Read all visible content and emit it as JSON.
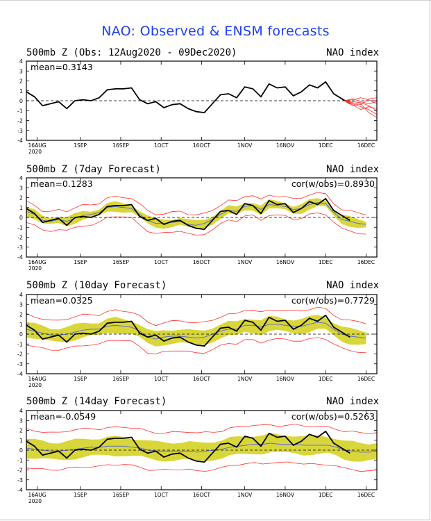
{
  "page": {
    "title": "NAO: Observed & ENSM forecasts"
  },
  "colors": {
    "title": "#1a3ff0",
    "observed": "#000000",
    "ensemble_members": "#ff3030",
    "spread": "#d9d63a",
    "ensemble_mean": "#5a6fd0",
    "zero_line": "#000000"
  },
  "x_axis": {
    "ticks": [
      {
        "label": "16AUG",
        "sub": "2020"
      },
      {
        "label": "1SEP",
        "sub": ""
      },
      {
        "label": "16SEP",
        "sub": ""
      },
      {
        "label": "1OCT",
        "sub": ""
      },
      {
        "label": "16OCT",
        "sub": ""
      },
      {
        "label": "1NOV",
        "sub": ""
      },
      {
        "label": "16NOV",
        "sub": ""
      },
      {
        "label": "1DEC",
        "sub": ""
      },
      {
        "label": "16DEC",
        "sub": ""
      }
    ],
    "tick_days": [
      4,
      20,
      35,
      50,
      65,
      81,
      96,
      111,
      126
    ]
  },
  "y_axis": {
    "ylim": [
      -4,
      4
    ],
    "ticks": [
      "4",
      "3",
      "2",
      "1",
      "0",
      "-1",
      "-2",
      "-3",
      "-4"
    ]
  },
  "panels": [
    {
      "title": "500mb Z (Obs: 12Aug2020 - 09Dec2020)",
      "index_label": "NAO index",
      "mean_label": "mean=0.3143",
      "cor_label": ""
    },
    {
      "title": "500mb Z (7day Forecast)",
      "index_label": "NAO index",
      "mean_label": "mean=0.1283",
      "cor_label": "cor(w/obs)=0.8930"
    },
    {
      "title": "500mb Z (10day Forecast)",
      "index_label": "NAO index",
      "mean_label": "mean=0.0325",
      "cor_label": "cor(w/obs)=0.7729"
    },
    {
      "title": "500mb Z (14day Forecast)",
      "index_label": "NAO index",
      "mean_label": "mean=-0.0549",
      "cor_label": "cor(w/obs)=0.5263"
    }
  ],
  "chart_data": {
    "type": "line",
    "x_units": "days since 12Aug2020",
    "xlim": [
      0,
      130
    ],
    "ylim": [
      -4,
      4
    ],
    "observed": {
      "name": "Observed NAO",
      "x": [
        0,
        3,
        6,
        9,
        12,
        15,
        18,
        21,
        24,
        27,
        30,
        33,
        36,
        39,
        42,
        45,
        48,
        51,
        54,
        57,
        60,
        63,
        66,
        69,
        72,
        75,
        78,
        81,
        84,
        87,
        90,
        93,
        96,
        99,
        102,
        105,
        108,
        111,
        114,
        117,
        120
      ],
      "y": [
        0.9,
        0.4,
        -0.5,
        -0.3,
        -0.1,
        -0.8,
        0.0,
        0.1,
        0.0,
        0.3,
        1.1,
        1.2,
        1.2,
        1.3,
        0.1,
        -0.3,
        -0.1,
        -0.7,
        -0.4,
        -0.3,
        -0.8,
        -1.1,
        -1.2,
        -0.3,
        0.6,
        0.7,
        0.3,
        1.4,
        1.2,
        0.4,
        1.7,
        1.3,
        1.4,
        0.5,
        0.9,
        1.6,
        1.3,
        1.9,
        0.7,
        0.2,
        -0.3
      ]
    },
    "forecast_members_panel1": {
      "x": [
        118,
        121,
        124,
        127,
        130
      ],
      "members": [
        [
          0.0,
          -0.3,
          -0.6,
          -0.9,
          -1.4
        ],
        [
          0.0,
          -0.1,
          -0.2,
          -0.5,
          -1.0
        ],
        [
          0.0,
          0.1,
          0.3,
          0.1,
          -0.3
        ],
        [
          0.0,
          -0.4,
          -0.9,
          -0.6,
          -0.8
        ],
        [
          0.0,
          -0.2,
          -0.4,
          0.2,
          0.3
        ],
        [
          0.0,
          -0.5,
          -0.3,
          -1.2,
          -1.7
        ],
        [
          0.0,
          0.2,
          -0.1,
          -0.3,
          -0.1
        ]
      ]
    },
    "forecasts": [
      {
        "lead": "7day",
        "start_x": 0,
        "end_x": 126,
        "ens_mean": [
          0.6,
          0.3,
          -0.3,
          -0.4,
          -0.2,
          -0.4,
          -0.1,
          0.2,
          0.3,
          0.5,
          1.0,
          1.1,
          1.0,
          0.9,
          0.3,
          -0.3,
          -0.6,
          -0.6,
          -0.5,
          -0.4,
          -0.7,
          -0.8,
          -0.6,
          -0.2,
          0.3,
          0.7,
          0.6,
          1.1,
          1.2,
          0.8,
          1.3,
          1.2,
          1.1,
          0.8,
          0.9,
          1.3,
          1.5,
          1.4,
          0.5,
          -0.2,
          -0.4,
          -0.6,
          -0.7
        ],
        "spread": 0.4,
        "envelope": 1.0
      },
      {
        "lead": "10day",
        "start_x": 0,
        "end_x": 126,
        "ens_mean": [
          0.5,
          0.3,
          0.1,
          -0.1,
          -0.1,
          0.0,
          0.2,
          0.4,
          0.5,
          0.5,
          0.8,
          0.9,
          0.8,
          0.7,
          0.3,
          -0.3,
          -0.5,
          -0.3,
          -0.2,
          -0.2,
          -0.3,
          -0.4,
          -0.3,
          0.0,
          0.3,
          0.5,
          0.5,
          0.9,
          0.9,
          0.7,
          1.0,
          1.0,
          0.9,
          0.8,
          0.8,
          1.0,
          1.2,
          1.1,
          0.5,
          0.0,
          -0.2,
          -0.3,
          -0.4
        ],
        "spread": 0.7,
        "envelope": 1.5
      },
      {
        "lead": "14day",
        "start_x": 0,
        "end_x": 130,
        "ens_mean": [
          0.2,
          0.1,
          0.0,
          -0.1,
          -0.1,
          0.0,
          0.1,
          0.2,
          0.3,
          0.3,
          0.4,
          0.4,
          0.4,
          0.3,
          0.2,
          0.0,
          -0.1,
          -0.1,
          -0.1,
          -0.1,
          -0.1,
          -0.2,
          -0.1,
          0.0,
          0.1,
          0.3,
          0.4,
          0.5,
          0.6,
          0.6,
          0.7,
          0.6,
          0.6,
          0.6,
          0.5,
          0.5,
          0.5,
          0.5,
          0.3,
          0.0,
          -0.1,
          -0.2,
          -0.2,
          -0.1
        ],
        "spread": 0.9,
        "envelope": 1.9
      }
    ]
  }
}
